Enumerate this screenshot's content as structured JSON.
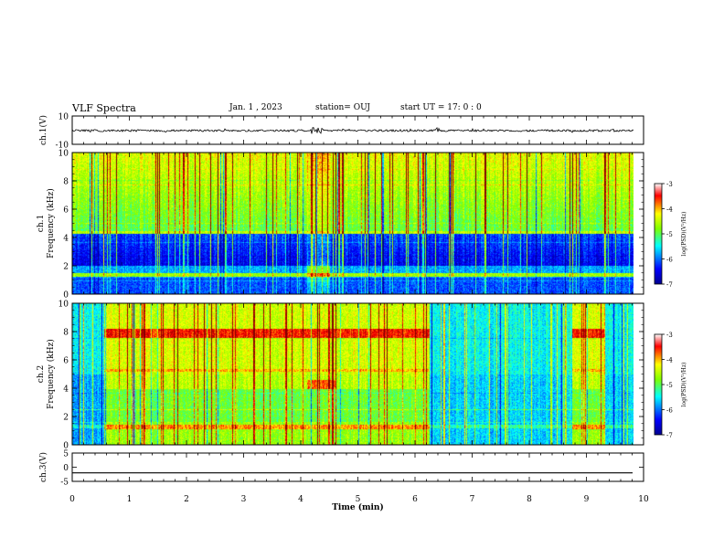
{
  "header": {
    "title": "VLF Spectra",
    "date": "Jan. 1 , 2023",
    "station": "station= OUJ",
    "start": "start UT =  17: 0 : 0"
  },
  "chart_data": [
    {
      "type": "line",
      "panel": "ch1-waveform",
      "ylabel": "ch.1(V)",
      "ylim": [
        -10,
        10
      ],
      "y_ticks": [
        "10",
        "-10"
      ],
      "xlim": [
        0,
        10
      ],
      "description_level": 0,
      "bursts_min": [
        4.2,
        4.3,
        4.35,
        6.4
      ]
    },
    {
      "type": "heatmap",
      "panel": "ch1-spectrogram",
      "ylabel_top": "ch.1",
      "ylabel": "Frequency (kHz)",
      "ylim": [
        0,
        10
      ],
      "y_ticks": [
        "0",
        "2",
        "4",
        "6",
        "8",
        "10"
      ],
      "xlim": [
        0,
        9.85
      ],
      "colorbar": {
        "label": "log(PSD)(V²/Hz)",
        "range": [
          -7,
          -3
        ],
        "ticks": [
          "-3",
          "-4",
          "-5",
          "-6",
          "-7"
        ]
      }
    },
    {
      "type": "heatmap",
      "panel": "ch2-spectrogram",
      "ylabel_top": "ch.2",
      "ylabel": "Frequency (kHz)",
      "ylim": [
        0,
        10
      ],
      "y_ticks": [
        "0",
        "2",
        "4",
        "6",
        "8",
        "10"
      ],
      "xlim": [
        0,
        9.85
      ],
      "active_intervals_min": [
        [
          0.55,
          6.25
        ],
        [
          8.75,
          9.3
        ]
      ],
      "colorbar": {
        "label": "log(PSD)(V²/Hz)",
        "range": [
          -7,
          -3
        ],
        "ticks": [
          "-3",
          "-4",
          "-5",
          "-6",
          "-7"
        ]
      }
    },
    {
      "type": "line",
      "panel": "ch3-waveform",
      "ylabel": "ch.3(V)",
      "ylim": [
        -5,
        5
      ],
      "y_ticks": [
        "5",
        "0",
        "-5"
      ],
      "level": -2,
      "xlim": [
        0,
        10
      ]
    }
  ],
  "x_axis": {
    "label": "Time (min)",
    "ticks": [
      "0",
      "1",
      "2",
      "3",
      "4",
      "5",
      "6",
      "7",
      "8",
      "9",
      "10"
    ],
    "range": [
      0,
      10
    ]
  },
  "colors": {
    "c1": "#00008f",
    "c2": "#0000ff",
    "c3": "#00ffff",
    "c4": "#7fff00",
    "c5": "#ffff00",
    "c6": "#ff0000",
    "c7": "#800000"
  }
}
